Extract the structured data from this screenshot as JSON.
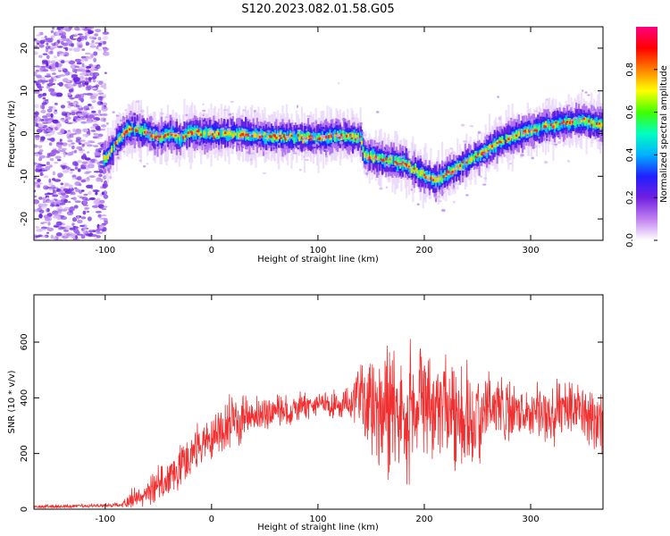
{
  "figure": {
    "title": "S120.2023.082.01.58.G05"
  },
  "chart_data": [
    {
      "type": "heatmap",
      "title": "",
      "xlabel": "Height of straight line (km)",
      "ylabel": "Frequency (Hz)",
      "xlim": [
        -167,
        368
      ],
      "ylim": [
        -25,
        25
      ],
      "xticks": [
        -100,
        0,
        100,
        200,
        300
      ],
      "yticks": [
        -20,
        -10,
        0,
        10,
        20
      ],
      "grid": false,
      "ridge": {
        "x": [
          -100,
          -90,
          -80,
          -70,
          -60,
          -50,
          -40,
          -30,
          -20,
          -10,
          0,
          20,
          40,
          60,
          80,
          100,
          120,
          140,
          142,
          150,
          160,
          180,
          200,
          210,
          230,
          250,
          270,
          290,
          310,
          330,
          350,
          366
        ],
        "y": [
          -6,
          -2,
          1,
          1,
          0,
          -1,
          0,
          -1,
          0.5,
          0,
          0,
          0,
          -0.5,
          -0.8,
          -0.8,
          -1,
          -0.5,
          -1,
          -5,
          -5.5,
          -6,
          -7,
          -10,
          -11,
          -8,
          -5,
          -2,
          0,
          1.5,
          2.5,
          3,
          2
        ]
      },
      "colorbar": {
        "label": "Normalized spectral amplitude",
        "range": [
          0,
          1
        ],
        "ticks": [
          "0.0",
          "0.2",
          "0.4",
          "0.6",
          "0.8"
        ],
        "tick_values": [
          0,
          0.2,
          0.4,
          0.6,
          0.8
        ],
        "colors": [
          "#ffffff",
          "#c080f0",
          "#7020e0",
          "#2020ff",
          "#00b0ff",
          "#00ffc0",
          "#40ff00",
          "#ffff00",
          "#ff8000",
          "#ff0000",
          "#ff0080"
        ]
      }
    },
    {
      "type": "line",
      "title": "",
      "xlabel": "Height of straight line (km)",
      "ylabel": "SNR (10 * v/v)",
      "xlim": [
        -167,
        368
      ],
      "ylim": [
        0,
        770
      ],
      "xticks": [
        -100,
        0,
        100,
        200,
        300
      ],
      "yticks": [
        0,
        200,
        400,
        600
      ],
      "grid": false,
      "series": [
        {
          "color": "#f03030",
          "x": [
            -167,
            -140,
            -110,
            -85,
            -75,
            -60,
            -50,
            -40,
            -30,
            -20,
            -15,
            -10,
            0,
            10,
            20,
            40,
            60,
            80,
            100,
            120,
            130,
            140,
            150,
            160,
            170,
            180,
            190,
            200,
            210,
            220,
            230,
            240,
            250,
            260,
            270,
            280,
            300,
            320,
            340,
            360,
            366
          ],
          "mean": [
            10,
            10,
            12,
            15,
            40,
            60,
            90,
            120,
            160,
            170,
            220,
            240,
            260,
            300,
            320,
            340,
            350,
            360,
            380,
            370,
            400,
            390,
            360,
            340,
            380,
            330,
            350,
            400,
            340,
            380,
            350,
            340,
            320,
            380,
            360,
            350,
            360,
            340,
            350,
            330,
            320
          ],
          "spread": [
            8,
            8,
            8,
            10,
            40,
            60,
            80,
            90,
            100,
            80,
            100,
            110,
            110,
            110,
            110,
            80,
            70,
            60,
            60,
            60,
            80,
            160,
            260,
            260,
            300,
            260,
            280,
            250,
            200,
            200,
            250,
            230,
            200,
            150,
            150,
            130,
            120,
            140,
            120,
            130,
            140
          ]
        }
      ]
    }
  ]
}
